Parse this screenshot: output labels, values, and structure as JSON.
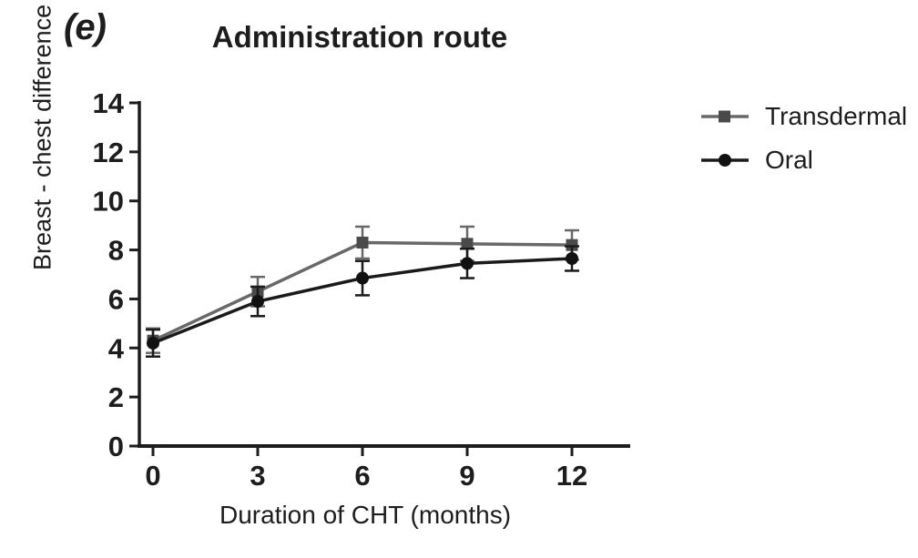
{
  "figure": {
    "panel_label": "(e)",
    "title": "Administration route"
  },
  "legend": {
    "items": [
      {
        "label": "Transdermal",
        "marker": "square",
        "color": "#686868",
        "marker_color": "#4a4a4a"
      },
      {
        "label": "Oral",
        "marker": "circle",
        "color": "#1a1a1a",
        "marker_color": "#111111"
      }
    ]
  },
  "chart_data": {
    "type": "line",
    "title": "Administration route",
    "xlabel": "Duration of CHT (months)",
    "ylabel": "Breast - chest difference (cm)",
    "x": [
      0,
      3,
      6,
      9,
      12
    ],
    "x_tick_labels": [
      "0",
      "3",
      "6",
      "9",
      "12"
    ],
    "y_ticks": [
      0,
      2,
      4,
      6,
      8,
      10,
      12,
      14
    ],
    "xlim": [
      0,
      12
    ],
    "ylim": [
      0,
      14
    ],
    "grid": false,
    "error_bars": true,
    "legend_position": "right",
    "series": [
      {
        "name": "Transdermal",
        "marker": "square",
        "color": "#686868",
        "marker_color": "#4a4a4a",
        "values": [
          4.3,
          6.3,
          8.3,
          8.25,
          8.2
        ],
        "errors": [
          0.5,
          0.6,
          0.65,
          0.7,
          0.6
        ]
      },
      {
        "name": "Oral",
        "marker": "circle",
        "color": "#1a1a1a",
        "marker_color": "#111111",
        "values": [
          4.2,
          5.9,
          6.85,
          7.45,
          7.65
        ],
        "errors": [
          0.55,
          0.6,
          0.7,
          0.6,
          0.5
        ]
      }
    ],
    "colors": {
      "axis": "#1d1d1d",
      "text": "#1d1d1d",
      "background": "#ffffff"
    }
  }
}
